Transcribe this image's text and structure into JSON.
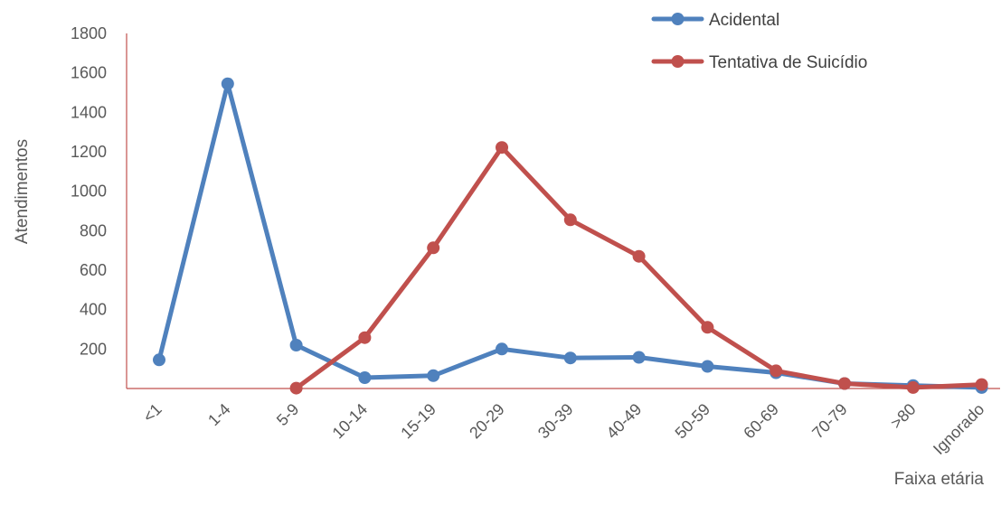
{
  "chart_data": {
    "type": "line",
    "title": "",
    "xlabel": "Faixa etária",
    "ylabel": "Atendimentos",
    "categories": [
      "<1",
      "1-4",
      "5-9",
      "10-14",
      "15-19",
      "20-29",
      "30-39",
      "40-49",
      "50-59",
      "60-69",
      "70-79",
      ">80",
      "Ignorado"
    ],
    "y_ticks": [
      200,
      400,
      600,
      800,
      1000,
      1200,
      1400,
      1600,
      1800
    ],
    "ylim": [
      0,
      1800
    ],
    "grid": false,
    "legend_position": "top-right",
    "series": [
      {
        "name": "Acidental",
        "color": "#4F81BD",
        "values": [
          145,
          1545,
          220,
          55,
          65,
          200,
          155,
          158,
          112,
          80,
          25,
          15,
          5
        ]
      },
      {
        "name": "Tentativa de Suicídio",
        "color": "#C0504D",
        "values": [
          null,
          null,
          2,
          258,
          713,
          1222,
          855,
          670,
          310,
          90,
          25,
          5,
          20
        ]
      }
    ],
    "axis_color": "#C0504D"
  }
}
